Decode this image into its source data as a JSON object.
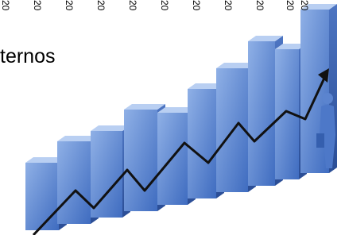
{
  "top_labels": [
    "20",
    "20",
    "20",
    "20",
    "20",
    "20",
    "20",
    "20",
    "20",
    "20",
    "20"
  ],
  "text": "ternos"
}
